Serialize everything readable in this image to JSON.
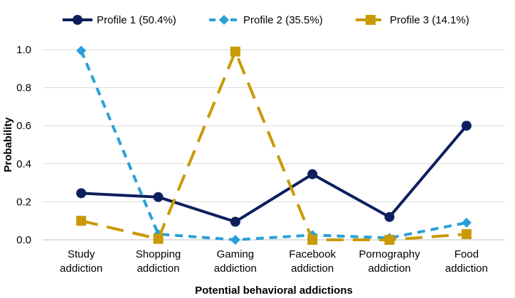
{
  "chart_data": {
    "type": "line",
    "title": "",
    "xlabel": "Potential behavioral addictions",
    "ylabel": "Probability",
    "ylim": [
      0,
      1
    ],
    "yticks": [
      "0.0",
      "0.2",
      "0.4",
      "0.6",
      "0.8",
      "1.0"
    ],
    "grid": true,
    "legend": "top",
    "categories": [
      [
        "Study",
        "addiction"
      ],
      [
        "Shopping",
        "addiction"
      ],
      [
        "Gaming",
        "addiction"
      ],
      [
        "Facebook",
        "addiction"
      ],
      [
        "Pornography",
        "addiction"
      ],
      [
        "Food",
        "addiction"
      ]
    ],
    "series": [
      {
        "name": "Profile 1 (50.4%)",
        "values": [
          0.245,
          0.225,
          0.095,
          0.345,
          0.12,
          0.6
        ],
        "color": "#0d1f5c",
        "marker": "circle",
        "dash": "solid"
      },
      {
        "name": "Profile 2 (35.5%)",
        "values": [
          0.995,
          0.03,
          0.0,
          0.025,
          0.01,
          0.09
        ],
        "color": "#2b9fd9",
        "marker": "diamond",
        "dash": "dashed"
      },
      {
        "name": "Profile 3 (14.1%)",
        "values": [
          0.1,
          0.005,
          0.99,
          0.0,
          0.0,
          0.03
        ],
        "color": "#c99a06",
        "marker": "square",
        "dash": "long-dash"
      }
    ]
  }
}
